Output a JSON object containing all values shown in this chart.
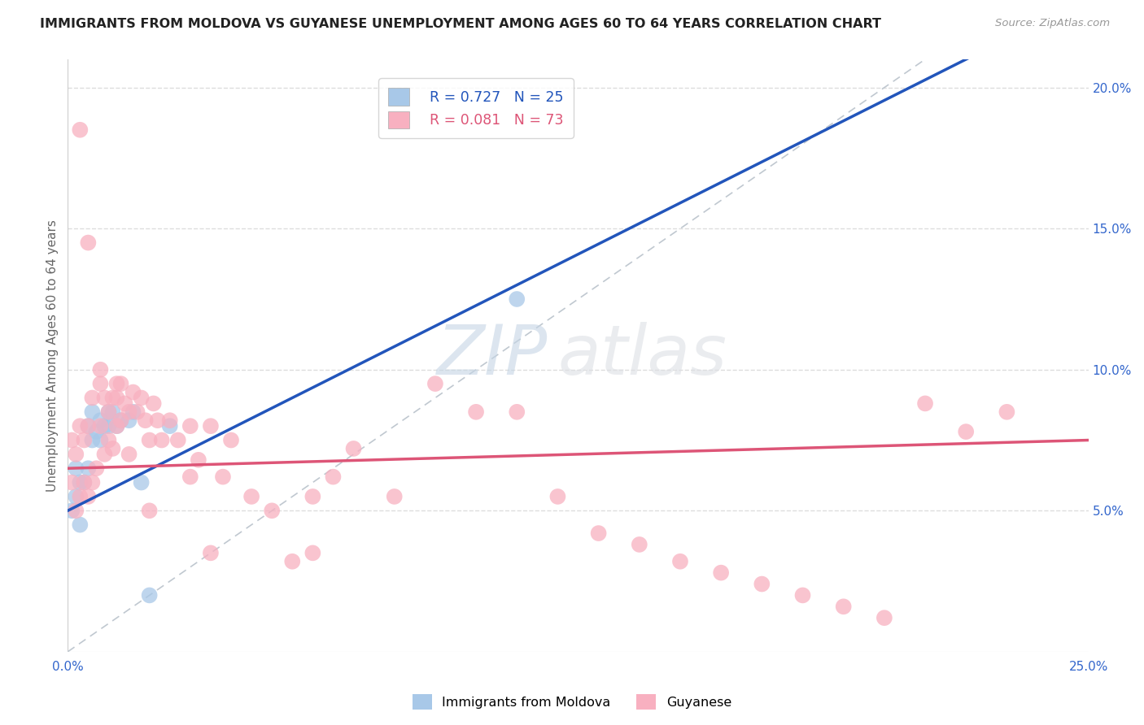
{
  "title": "IMMIGRANTS FROM MOLDOVA VS GUYANESE UNEMPLOYMENT AMONG AGES 60 TO 64 YEARS CORRELATION CHART",
  "source": "Source: ZipAtlas.com",
  "ylabel": "Unemployment Among Ages 60 to 64 years",
  "xlim": [
    0.0,
    0.25
  ],
  "ylim": [
    0.0,
    0.21
  ],
  "moldova_color": "#a8c8e8",
  "guyanese_color": "#f8b0c0",
  "moldova_line_color": "#2255bb",
  "guyanese_line_color": "#dd5577",
  "diagonal_color": "#c0c8d0",
  "watermark_zip": "ZIP",
  "watermark_atlas": "atlas",
  "legend_moldova_r": "R = 0.727",
  "legend_moldova_n": "N = 25",
  "legend_guyanese_r": "R = 0.081",
  "legend_guyanese_n": "N = 73",
  "moldova_x": [
    0.001,
    0.002,
    0.002,
    0.003,
    0.003,
    0.004,
    0.005,
    0.005,
    0.006,
    0.006,
    0.007,
    0.008,
    0.008,
    0.009,
    0.01,
    0.01,
    0.011,
    0.012,
    0.013,
    0.015,
    0.016,
    0.018,
    0.02,
    0.025,
    0.11
  ],
  "moldova_y": [
    0.05,
    0.055,
    0.065,
    0.045,
    0.06,
    0.06,
    0.065,
    0.08,
    0.075,
    0.085,
    0.078,
    0.082,
    0.075,
    0.08,
    0.08,
    0.085,
    0.085,
    0.08,
    0.082,
    0.082,
    0.085,
    0.06,
    0.02,
    0.08,
    0.125
  ],
  "guyanese_x": [
    0.001,
    0.001,
    0.002,
    0.002,
    0.003,
    0.003,
    0.004,
    0.004,
    0.005,
    0.005,
    0.006,
    0.006,
    0.007,
    0.008,
    0.008,
    0.009,
    0.009,
    0.01,
    0.01,
    0.011,
    0.011,
    0.012,
    0.012,
    0.013,
    0.013,
    0.014,
    0.015,
    0.015,
    0.016,
    0.017,
    0.018,
    0.019,
    0.02,
    0.021,
    0.022,
    0.023,
    0.025,
    0.027,
    0.03,
    0.03,
    0.032,
    0.035,
    0.038,
    0.04,
    0.045,
    0.05,
    0.055,
    0.06,
    0.065,
    0.07,
    0.08,
    0.09,
    0.1,
    0.11,
    0.12,
    0.13,
    0.14,
    0.15,
    0.16,
    0.17,
    0.18,
    0.19,
    0.2,
    0.21,
    0.22,
    0.23,
    0.003,
    0.005,
    0.008,
    0.012,
    0.02,
    0.035,
    0.06
  ],
  "guyanese_y": [
    0.06,
    0.075,
    0.05,
    0.07,
    0.055,
    0.08,
    0.06,
    0.075,
    0.055,
    0.08,
    0.06,
    0.09,
    0.065,
    0.08,
    0.095,
    0.07,
    0.09,
    0.075,
    0.085,
    0.072,
    0.09,
    0.08,
    0.09,
    0.082,
    0.095,
    0.088,
    0.07,
    0.085,
    0.092,
    0.085,
    0.09,
    0.082,
    0.075,
    0.088,
    0.082,
    0.075,
    0.082,
    0.075,
    0.062,
    0.08,
    0.068,
    0.08,
    0.062,
    0.075,
    0.055,
    0.05,
    0.032,
    0.055,
    0.062,
    0.072,
    0.055,
    0.095,
    0.085,
    0.085,
    0.055,
    0.042,
    0.038,
    0.032,
    0.028,
    0.024,
    0.02,
    0.016,
    0.012,
    0.088,
    0.078,
    0.085,
    0.185,
    0.145,
    0.1,
    0.095,
    0.05,
    0.035,
    0.035
  ],
  "background_color": "#ffffff",
  "grid_color": "#dddddd"
}
